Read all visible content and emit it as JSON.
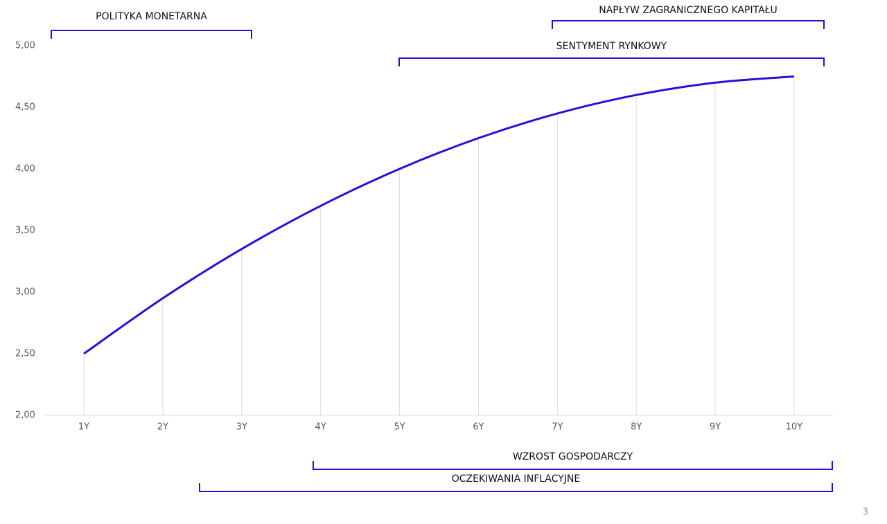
{
  "chart_data": {
    "type": "line",
    "categories": [
      "1Y",
      "2Y",
      "3Y",
      "4Y",
      "5Y",
      "6Y",
      "7Y",
      "8Y",
      "9Y",
      "10Y"
    ],
    "series": [
      {
        "color": "#2a0ce0",
        "values": [
          2.5,
          2.95,
          3.35,
          3.7,
          4.0,
          4.25,
          4.45,
          4.6,
          4.7,
          4.75
        ]
      }
    ],
    "ylim": [
      2,
      5
    ],
    "yticks": [
      {
        "value": 2,
        "label": "2,00"
      },
      {
        "value": 2.5,
        "label": "2,50"
      },
      {
        "value": 3,
        "label": "3,00"
      },
      {
        "value": 3.5,
        "label": "3,50"
      },
      {
        "value": 4,
        "label": "4,00"
      },
      {
        "value": 4.5,
        "label": "4,50"
      },
      {
        "value": 5,
        "label": "5,00"
      }
    ],
    "annotations": [
      "POLITYKA MONETARNA",
      "NAPŁYW ZAGRANICZNEGO KAPITAŁU",
      "SENTYMENT RYNKOWY",
      "WZROST GOSPODARCZY",
      "OCZEKIWANIA INFLACYJNE"
    ],
    "bracket_color": "#2a0ce0"
  },
  "page_number": "3"
}
